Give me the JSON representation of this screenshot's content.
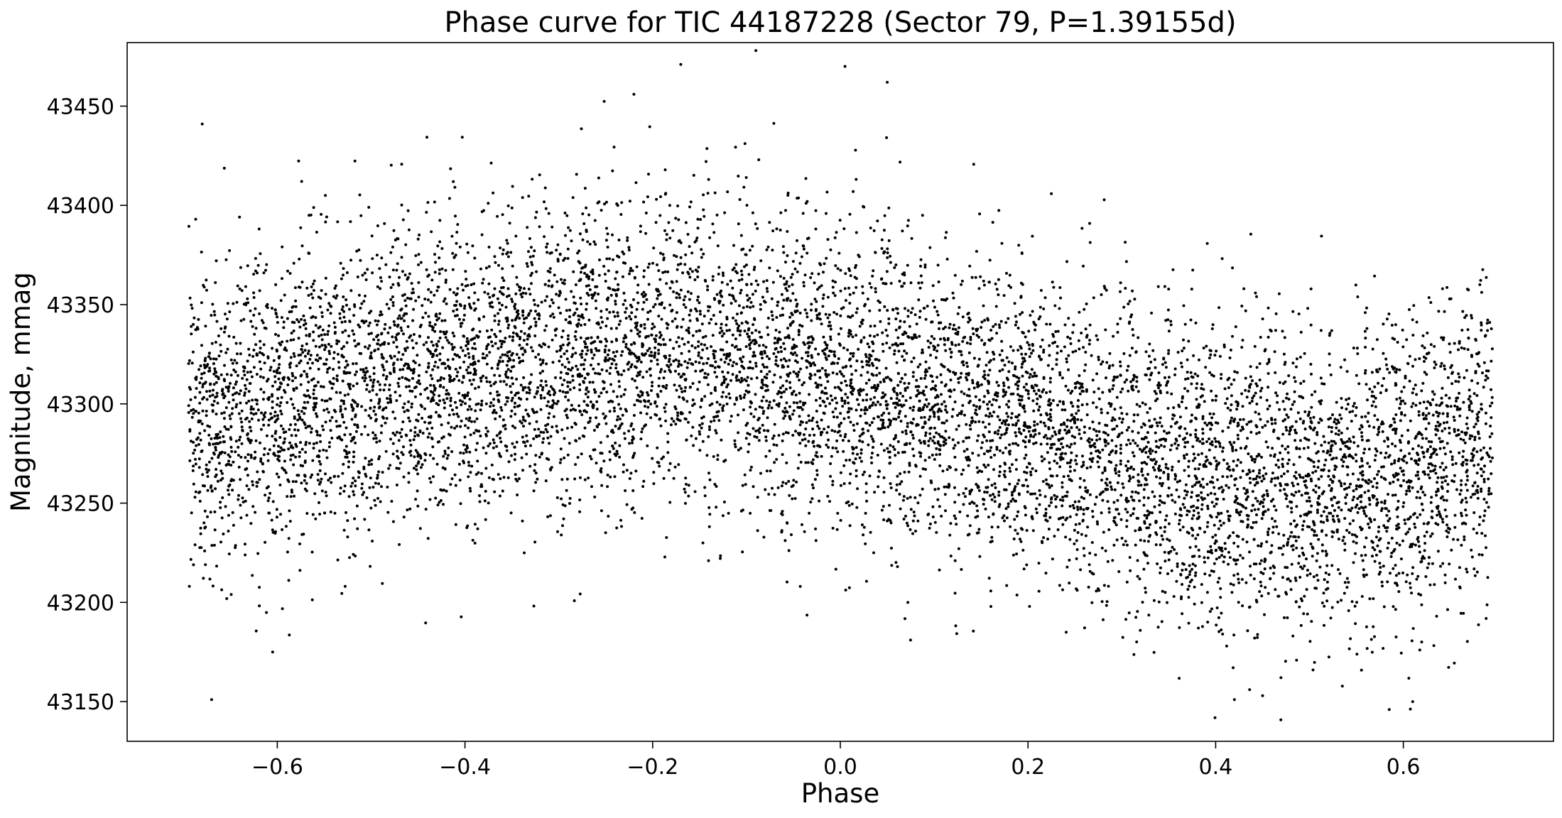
{
  "chart_data": {
    "type": "scatter",
    "title": "Phase curve for TIC 44187228 (Sector 79, P=1.39155d)",
    "xlabel": "Phase",
    "ylabel": "Magnitude, mmag",
    "xlim": [
      -0.76,
      0.76
    ],
    "ylim": [
      43130,
      43482
    ],
    "x_ticks": [
      -0.6,
      -0.4,
      -0.2,
      0.0,
      0.2,
      0.4,
      0.6
    ],
    "x_tick_labels": [
      "−0.6",
      "−0.4",
      "−0.2",
      "0.0",
      "0.2",
      "0.4",
      "0.6"
    ],
    "y_ticks": [
      43150,
      43200,
      43250,
      43300,
      43350,
      43400,
      43450
    ],
    "y_tick_labels": [
      "43150",
      "43200",
      "43250",
      "43300",
      "43350",
      "43400",
      "43450"
    ],
    "grid": false,
    "legend": "none",
    "marker_color": "#000000",
    "series": [
      {
        "phase_range": [
          -0.695,
          0.695
        ],
        "point_count": 9000,
        "trend": {
          "x": [
            -0.69,
            -0.6,
            -0.5,
            -0.4,
            -0.3,
            -0.2,
            -0.1,
            0.0,
            0.1,
            0.2,
            0.3,
            0.4,
            0.5,
            0.6,
            0.69
          ],
          "y": [
            43290,
            43300,
            43310,
            43318,
            43325,
            43330,
            43325,
            43315,
            43303,
            43290,
            43275,
            43262,
            43258,
            43270,
            43285
          ]
        },
        "scatter_sd": 38,
        "extremes": [
          {
            "x": -0.09,
            "y": 43478
          },
          {
            "x": -0.17,
            "y": 43471
          },
          {
            "x": 0.005,
            "y": 43470
          },
          {
            "x": 0.05,
            "y": 43462
          },
          {
            "x": -0.22,
            "y": 43456
          },
          {
            "x": -0.68,
            "y": 43441
          },
          {
            "x": -0.67,
            "y": 43151
          },
          {
            "x": 0.585,
            "y": 43146
          },
          {
            "x": 0.42,
            "y": 43151
          },
          {
            "x": 0.45,
            "y": 43153
          },
          {
            "x": 0.61,
            "y": 43150
          },
          {
            "x": -0.605,
            "y": 43175
          }
        ]
      }
    ]
  }
}
